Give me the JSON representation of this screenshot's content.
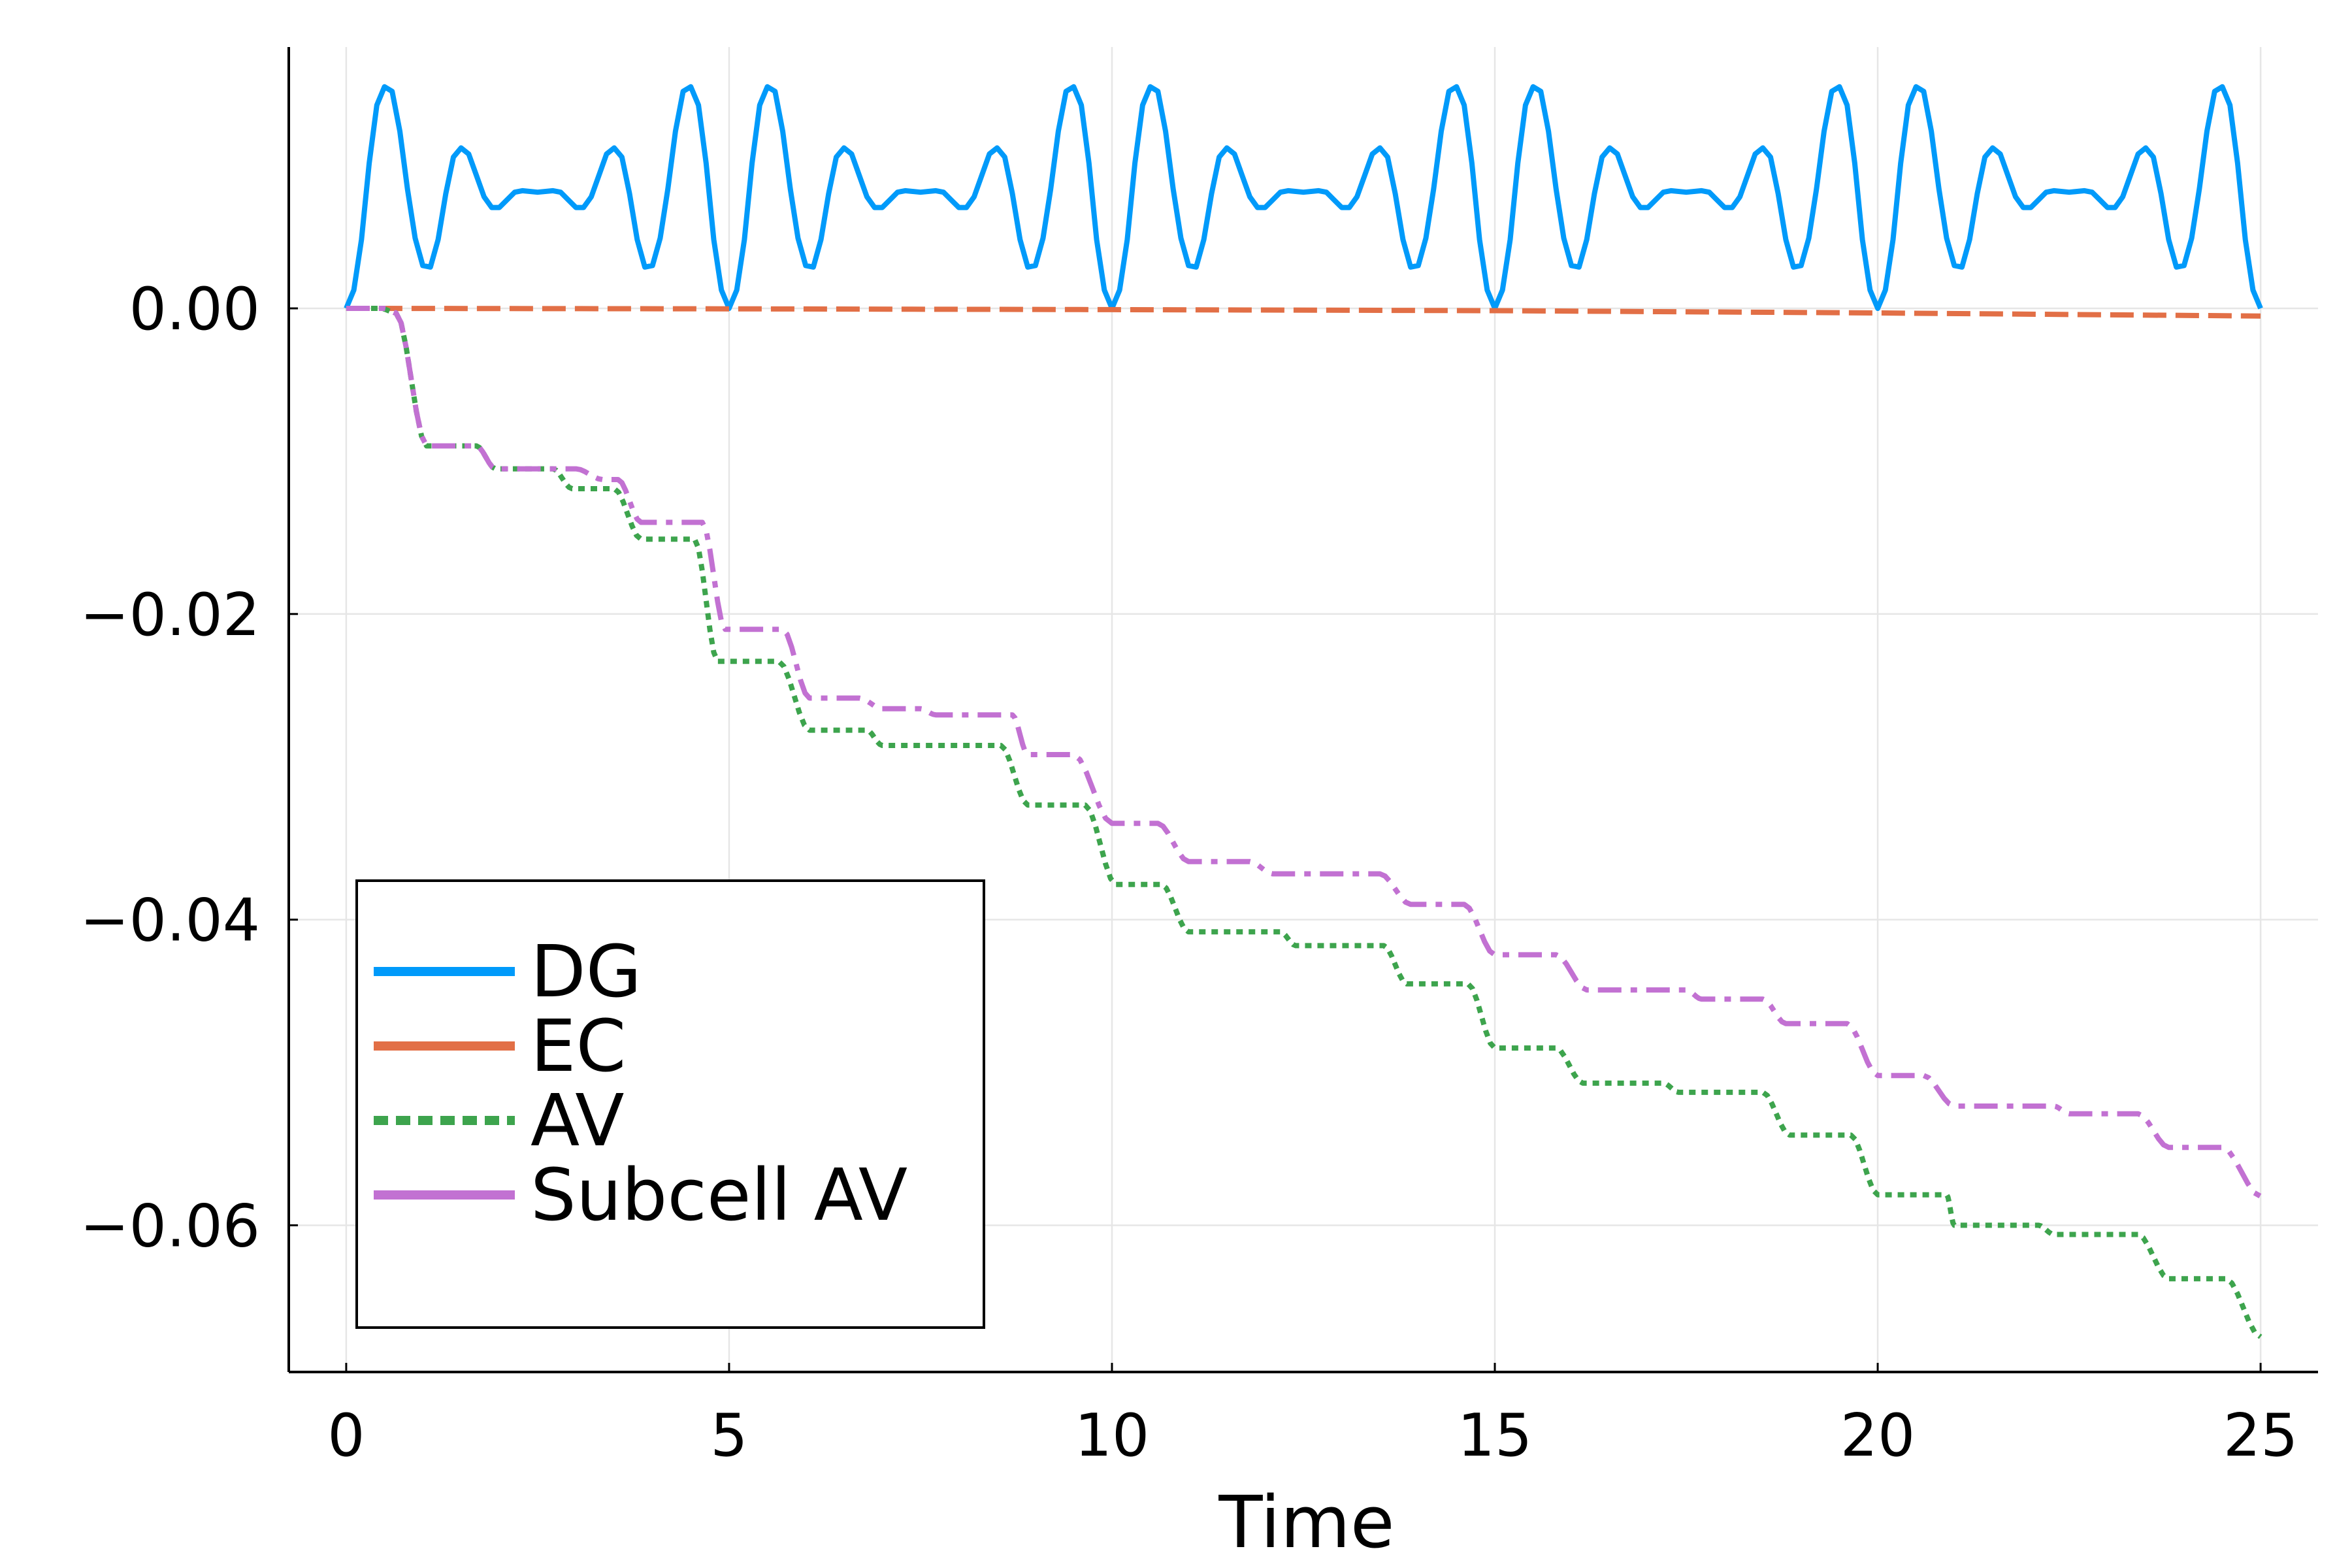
{
  "chart_data": {
    "type": "line",
    "title": "",
    "xlabel": "Time",
    "ylabel": "",
    "xlim": [
      -0.75,
      25.75
    ],
    "ylim": [
      -0.0696,
      0.0171
    ],
    "grid": true,
    "x_ticks": [
      0,
      5,
      10,
      15,
      20,
      25
    ],
    "x_tick_labels": [
      "0",
      "5",
      "10",
      "15",
      "20",
      "25"
    ],
    "y_ticks": [
      0.0,
      -0.02,
      -0.04,
      -0.06
    ],
    "y_tick_labels": [
      "0.00",
      "−0.02",
      "−0.04",
      "−0.06"
    ],
    "legend_position": "bottom-left",
    "series": [
      {
        "name": "DG",
        "color": "#009AFA",
        "style": "solid",
        "generator": "periodic",
        "period": 5,
        "t_end": 25,
        "profile": [
          [
            0.0,
            0.0
          ],
          [
            0.1,
            0.0012
          ],
          [
            0.2,
            0.0045
          ],
          [
            0.3,
            0.0095
          ],
          [
            0.4,
            0.0133
          ],
          [
            0.5,
            0.0145
          ],
          [
            0.6,
            0.0142
          ],
          [
            0.7,
            0.0116
          ],
          [
            0.8,
            0.0078
          ],
          [
            0.9,
            0.0046
          ],
          [
            1.0,
            0.0028
          ],
          [
            1.1,
            0.0027
          ],
          [
            1.2,
            0.0045
          ],
          [
            1.3,
            0.0075
          ],
          [
            1.4,
            0.0099
          ],
          [
            1.5,
            0.0105
          ],
          [
            1.6,
            0.0101
          ],
          [
            1.7,
            0.0087
          ],
          [
            1.8,
            0.0073
          ],
          [
            1.9,
            0.0066
          ],
          [
            2.0,
            0.0066
          ],
          [
            2.1,
            0.0071
          ],
          [
            2.2,
            0.0076
          ],
          [
            2.3,
            0.0077
          ],
          [
            2.5,
            0.0076
          ],
          [
            2.7,
            0.0077
          ],
          [
            2.8,
            0.0076
          ],
          [
            2.9,
            0.0071
          ],
          [
            3.0,
            0.0066
          ],
          [
            3.1,
            0.0066
          ],
          [
            3.2,
            0.0073
          ],
          [
            3.3,
            0.0087
          ],
          [
            3.4,
            0.0101
          ],
          [
            3.5,
            0.0105
          ],
          [
            3.6,
            0.0099
          ],
          [
            3.7,
            0.0075
          ],
          [
            3.8,
            0.0045
          ],
          [
            3.9,
            0.0027
          ],
          [
            4.0,
            0.0028
          ],
          [
            4.1,
            0.0046
          ],
          [
            4.2,
            0.0078
          ],
          [
            4.3,
            0.0116
          ],
          [
            4.4,
            0.0142
          ],
          [
            4.5,
            0.0145
          ],
          [
            4.6,
            0.0133
          ],
          [
            4.7,
            0.0095
          ],
          [
            4.8,
            0.0045
          ],
          [
            4.9,
            0.0012
          ],
          [
            5.0,
            0.0
          ]
        ]
      },
      {
        "name": "EC",
        "color": "#E26F46",
        "style": "dashed",
        "generator": "points",
        "points": [
          [
            0,
            0.0
          ],
          [
            5,
            -3e-05
          ],
          [
            10,
            -8e-05
          ],
          [
            15,
            -0.00015
          ],
          [
            20,
            -0.0003
          ],
          [
            25,
            -0.0005
          ]
        ]
      },
      {
        "name": "AV",
        "color": "#3DA44D",
        "style": "dotted",
        "generator": "steps",
        "start": [
          0,
          0.0
        ],
        "end_t": 25,
        "steps": [
          [
            0.45,
            0.65,
            -0.0003
          ],
          [
            0.65,
            1.05,
            -0.009
          ],
          [
            1.7,
            1.95,
            -0.0105
          ],
          [
            2.7,
            2.95,
            -0.0118
          ],
          [
            3.5,
            3.85,
            -0.0151
          ],
          [
            4.55,
            4.85,
            -0.0231
          ],
          [
            5.65,
            6.05,
            -0.0276
          ],
          [
            6.8,
            7.0,
            -0.0286
          ],
          [
            8.55,
            8.9,
            -0.0325
          ],
          [
            9.65,
            10.05,
            -0.0377
          ],
          [
            10.65,
            11.0,
            -0.0408
          ],
          [
            12.2,
            12.4,
            -0.0417
          ],
          [
            13.55,
            13.85,
            -0.0442
          ],
          [
            14.65,
            15.0,
            -0.0484
          ],
          [
            15.8,
            16.15,
            -0.0507
          ],
          [
            17.2,
            17.4,
            -0.0513
          ],
          [
            18.5,
            18.85,
            -0.0541
          ],
          [
            19.65,
            20.0,
            -0.058
          ],
          [
            20.9,
            21.0,
            -0.06
          ],
          [
            22.1,
            22.3,
            -0.0606
          ],
          [
            23.4,
            23.8,
            -0.0635
          ],
          [
            24.55,
            25.0,
            -0.0673
          ]
        ]
      },
      {
        "name": "Subcell AV",
        "color": "#C271D2",
        "style": "dashdot",
        "generator": "steps",
        "start": [
          0,
          0.0
        ],
        "end_t": 25,
        "steps": [
          [
            0.5,
            0.65,
            -0.0003
          ],
          [
            0.65,
            1.05,
            -0.009
          ],
          [
            1.7,
            1.95,
            -0.0105
          ],
          [
            3.0,
            3.35,
            -0.0112
          ],
          [
            3.55,
            3.85,
            -0.014
          ],
          [
            4.65,
            4.95,
            -0.021
          ],
          [
            5.7,
            6.05,
            -0.0255
          ],
          [
            6.7,
            7.0,
            -0.0262
          ],
          [
            7.5,
            7.7,
            -0.0266
          ],
          [
            8.7,
            8.9,
            -0.0292
          ],
          [
            9.5,
            10.0,
            -0.0337
          ],
          [
            10.6,
            11.0,
            -0.0362
          ],
          [
            11.8,
            12.1,
            -0.037
          ],
          [
            13.5,
            13.9,
            -0.039
          ],
          [
            14.6,
            15.0,
            -0.0423
          ],
          [
            15.8,
            16.2,
            -0.0446
          ],
          [
            17.5,
            17.7,
            -0.0452
          ],
          [
            18.5,
            18.8,
            -0.0468
          ],
          [
            19.6,
            20.0,
            -0.0502
          ],
          [
            20.6,
            21.0,
            -0.0522
          ],
          [
            22.3,
            22.5,
            -0.0527
          ],
          [
            23.4,
            23.8,
            -0.0549
          ],
          [
            24.5,
            25.0,
            -0.0581
          ]
        ]
      }
    ]
  }
}
